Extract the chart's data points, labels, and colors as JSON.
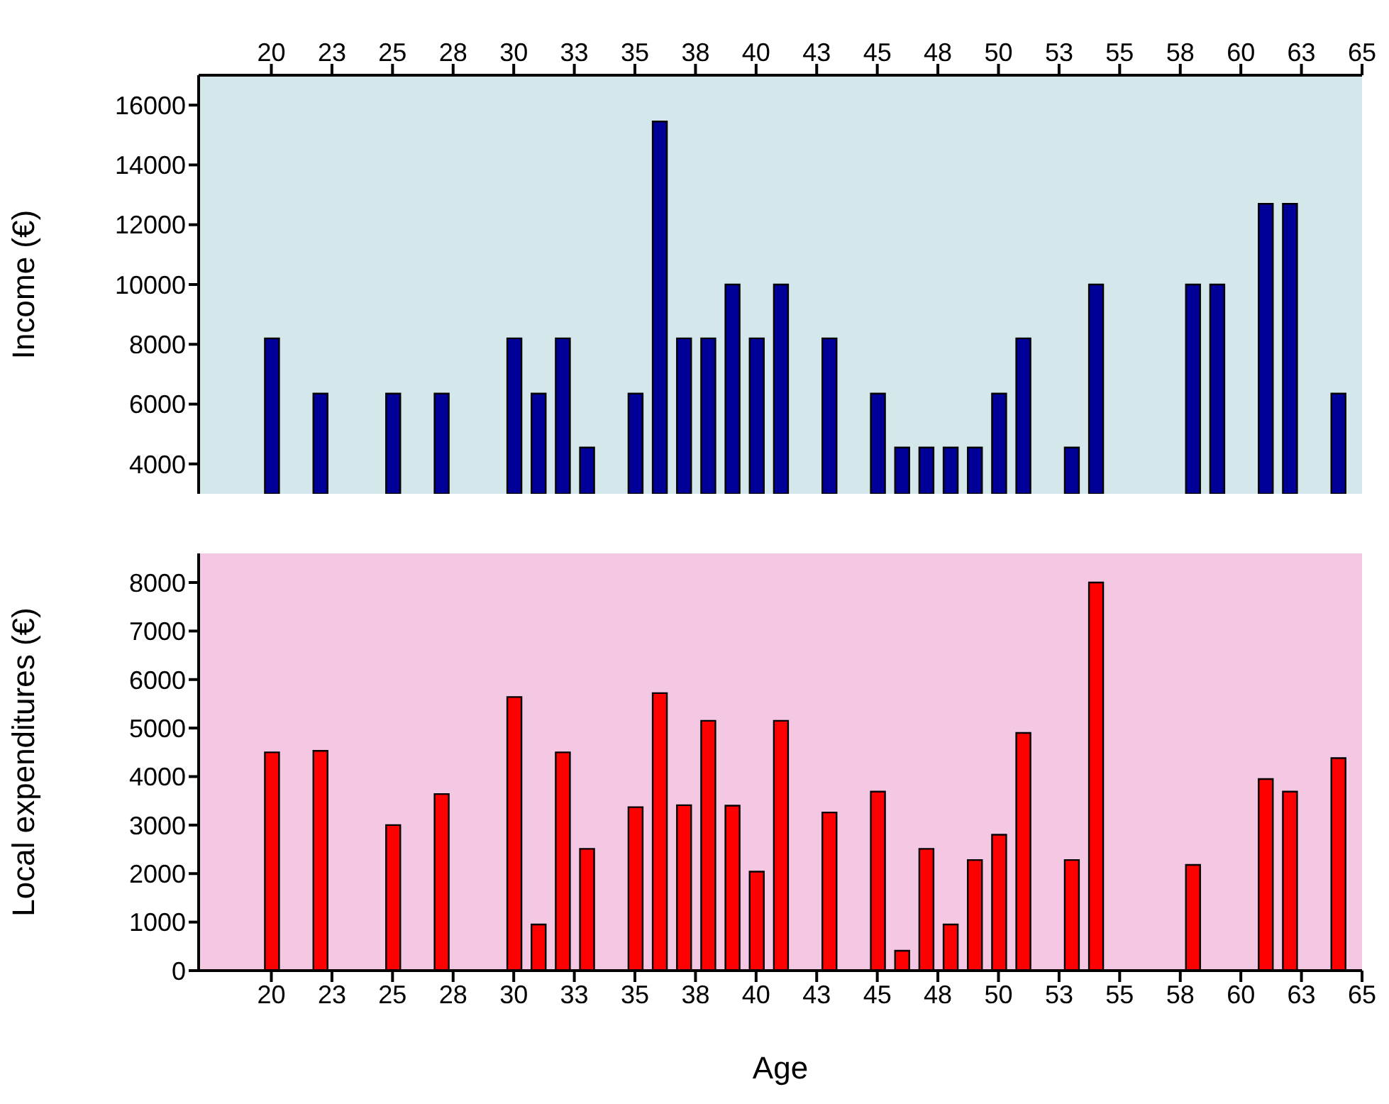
{
  "chart_data": [
    {
      "type": "bar",
      "ylabel": "Income (€)",
      "color": "#000099",
      "x": [
        20,
        22,
        25,
        27,
        30,
        31,
        32,
        33,
        35,
        36,
        37,
        38,
        39,
        40,
        41,
        43,
        45,
        46,
        47,
        48,
        49,
        50,
        51,
        53,
        54,
        58,
        59,
        61,
        62,
        64
      ],
      "values": [
        8200,
        6350,
        6350,
        6350,
        8200,
        6350,
        8200,
        4550,
        6350,
        15450,
        8200,
        8200,
        10000,
        8200,
        10000,
        8200,
        6350,
        4550,
        4550,
        4550,
        4550,
        6350,
        8200,
        4550,
        10000,
        10000,
        10000,
        12700,
        12700,
        6350
      ],
      "xlim": [
        17,
        65
      ],
      "xticks": [
        20,
        {
          "value": 22.5,
          "label": "23"
        },
        25,
        {
          "value": 27.5,
          "label": "28"
        },
        30,
        {
          "value": 32.5,
          "label": "33"
        },
        35,
        {
          "value": 37.5,
          "label": "38"
        },
        40,
        {
          "value": 42.5,
          "label": "43"
        },
        45,
        {
          "value": 47.5,
          "label": "48"
        },
        50,
        {
          "value": 52.5,
          "label": "53"
        },
        55,
        {
          "value": 57.5,
          "label": "58"
        },
        60,
        {
          "value": 62.5,
          "label": "63"
        },
        65
      ],
      "ylim": [
        3000,
        17000
      ],
      "yticks": [
        4000,
        6000,
        8000,
        10000,
        12000,
        14000,
        16000
      ]
    },
    {
      "type": "bar",
      "xlabel": "Age",
      "ylabel": "Local expenditures (€)",
      "color": "#ff0000",
      "x": [
        20,
        22,
        25,
        27,
        30,
        31,
        32,
        33,
        35,
        36,
        37,
        38,
        39,
        40,
        41,
        43,
        45,
        46,
        47,
        48,
        49,
        50,
        51,
        53,
        54,
        58,
        61,
        62,
        64
      ],
      "values": [
        4500,
        4530,
        3000,
        3640,
        5640,
        950,
        4500,
        2510,
        3370,
        5720,
        3410,
        5150,
        3400,
        2040,
        5150,
        3260,
        3690,
        410,
        2510,
        950,
        2280,
        2800,
        4900,
        2280,
        8000,
        2180,
        3950,
        3690,
        4380
      ],
      "xlim": [
        17,
        65
      ],
      "xticks": [
        20,
        {
          "value": 22.5,
          "label": "23"
        },
        25,
        {
          "value": 27.5,
          "label": "28"
        },
        30,
        {
          "value": 32.5,
          "label": "33"
        },
        35,
        {
          "value": 37.5,
          "label": "38"
        },
        40,
        {
          "value": 42.5,
          "label": "43"
        },
        45,
        {
          "value": 47.5,
          "label": "48"
        },
        50,
        {
          "value": 52.5,
          "label": "53"
        },
        55,
        {
          "value": 57.5,
          "label": "58"
        },
        60,
        {
          "value": 62.5,
          "label": "63"
        },
        65
      ],
      "ylim": [
        0,
        8600
      ],
      "yticks": [
        0,
        1000,
        2000,
        3000,
        4000,
        5000,
        6000,
        7000,
        8000
      ]
    }
  ]
}
